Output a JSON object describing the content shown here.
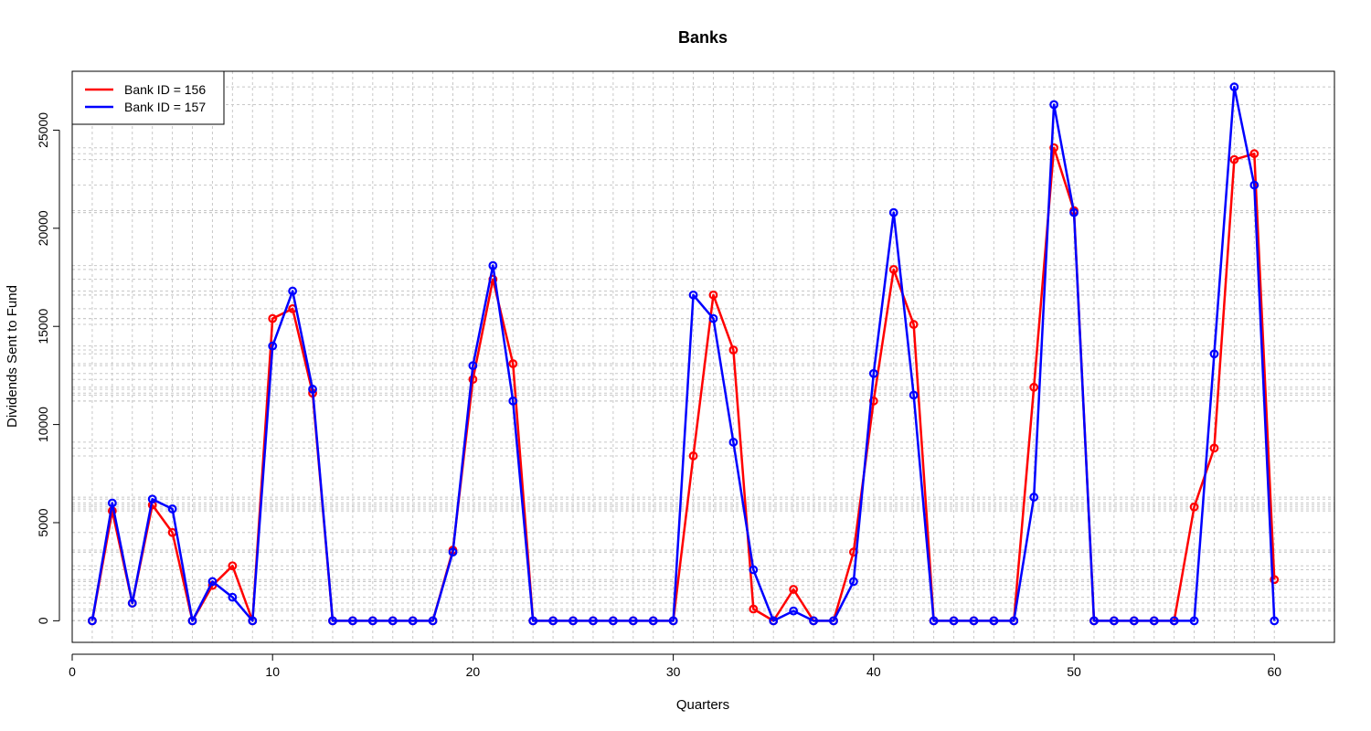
{
  "chart_data": {
    "type": "line",
    "title": "Banks",
    "xlabel": "Quarters",
    "ylabel": "Dividends Sent to Fund",
    "xlim": [
      0,
      63
    ],
    "ylim": [
      -1100,
      28000
    ],
    "x_ticks": [
      0,
      10,
      20,
      30,
      40,
      50,
      60
    ],
    "x_tick_labels": [
      "0",
      "10",
      "20",
      "30",
      "40",
      "50",
      "60"
    ],
    "y_ticks": [
      0,
      5000,
      10000,
      15000,
      20000,
      25000
    ],
    "y_tick_labels": [
      "0",
      "5000",
      "10000",
      "15000",
      "20000",
      "25000"
    ],
    "grid": true,
    "legend_position": "top-left",
    "x": [
      1,
      2,
      3,
      4,
      5,
      6,
      7,
      8,
      9,
      10,
      11,
      12,
      13,
      14,
      15,
      16,
      17,
      18,
      19,
      20,
      21,
      22,
      23,
      24,
      25,
      26,
      27,
      28,
      29,
      30,
      31,
      32,
      33,
      34,
      35,
      36,
      37,
      38,
      39,
      40,
      41,
      42,
      43,
      44,
      45,
      46,
      47,
      48,
      49,
      50,
      51,
      52,
      53,
      54,
      55,
      56,
      57,
      58,
      59,
      60
    ],
    "series": [
      {
        "name": "Bank ID = 156",
        "color": "#ff0000",
        "values": [
          0,
          5600,
          900,
          5900,
          4500,
          0,
          1800,
          2800,
          0,
          15400,
          15900,
          11600,
          0,
          0,
          0,
          0,
          0,
          0,
          3600,
          12300,
          17400,
          13100,
          0,
          0,
          0,
          0,
          0,
          0,
          0,
          0,
          8400,
          16600,
          13800,
          600,
          0,
          1600,
          0,
          0,
          3500,
          11200,
          17900,
          15100,
          0,
          0,
          0,
          0,
          0,
          11900,
          24100,
          20900,
          0,
          0,
          0,
          0,
          0,
          5800,
          8800,
          23500,
          23800,
          2100
        ]
      },
      {
        "name": "Bank ID = 157",
        "color": "#0000ff",
        "values": [
          0,
          6000,
          900,
          6200,
          5700,
          0,
          2000,
          1200,
          0,
          14000,
          16800,
          11800,
          0,
          0,
          0,
          0,
          0,
          0,
          3500,
          13000,
          18100,
          11200,
          0,
          0,
          0,
          0,
          0,
          0,
          0,
          0,
          16600,
          15400,
          9100,
          2600,
          0,
          500,
          0,
          0,
          2000,
          12600,
          20800,
          11500,
          0,
          0,
          0,
          0,
          0,
          6300,
          26300,
          20800,
          0,
          0,
          0,
          0,
          0,
          0,
          13600,
          27200,
          22200,
          0
        ]
      }
    ]
  }
}
